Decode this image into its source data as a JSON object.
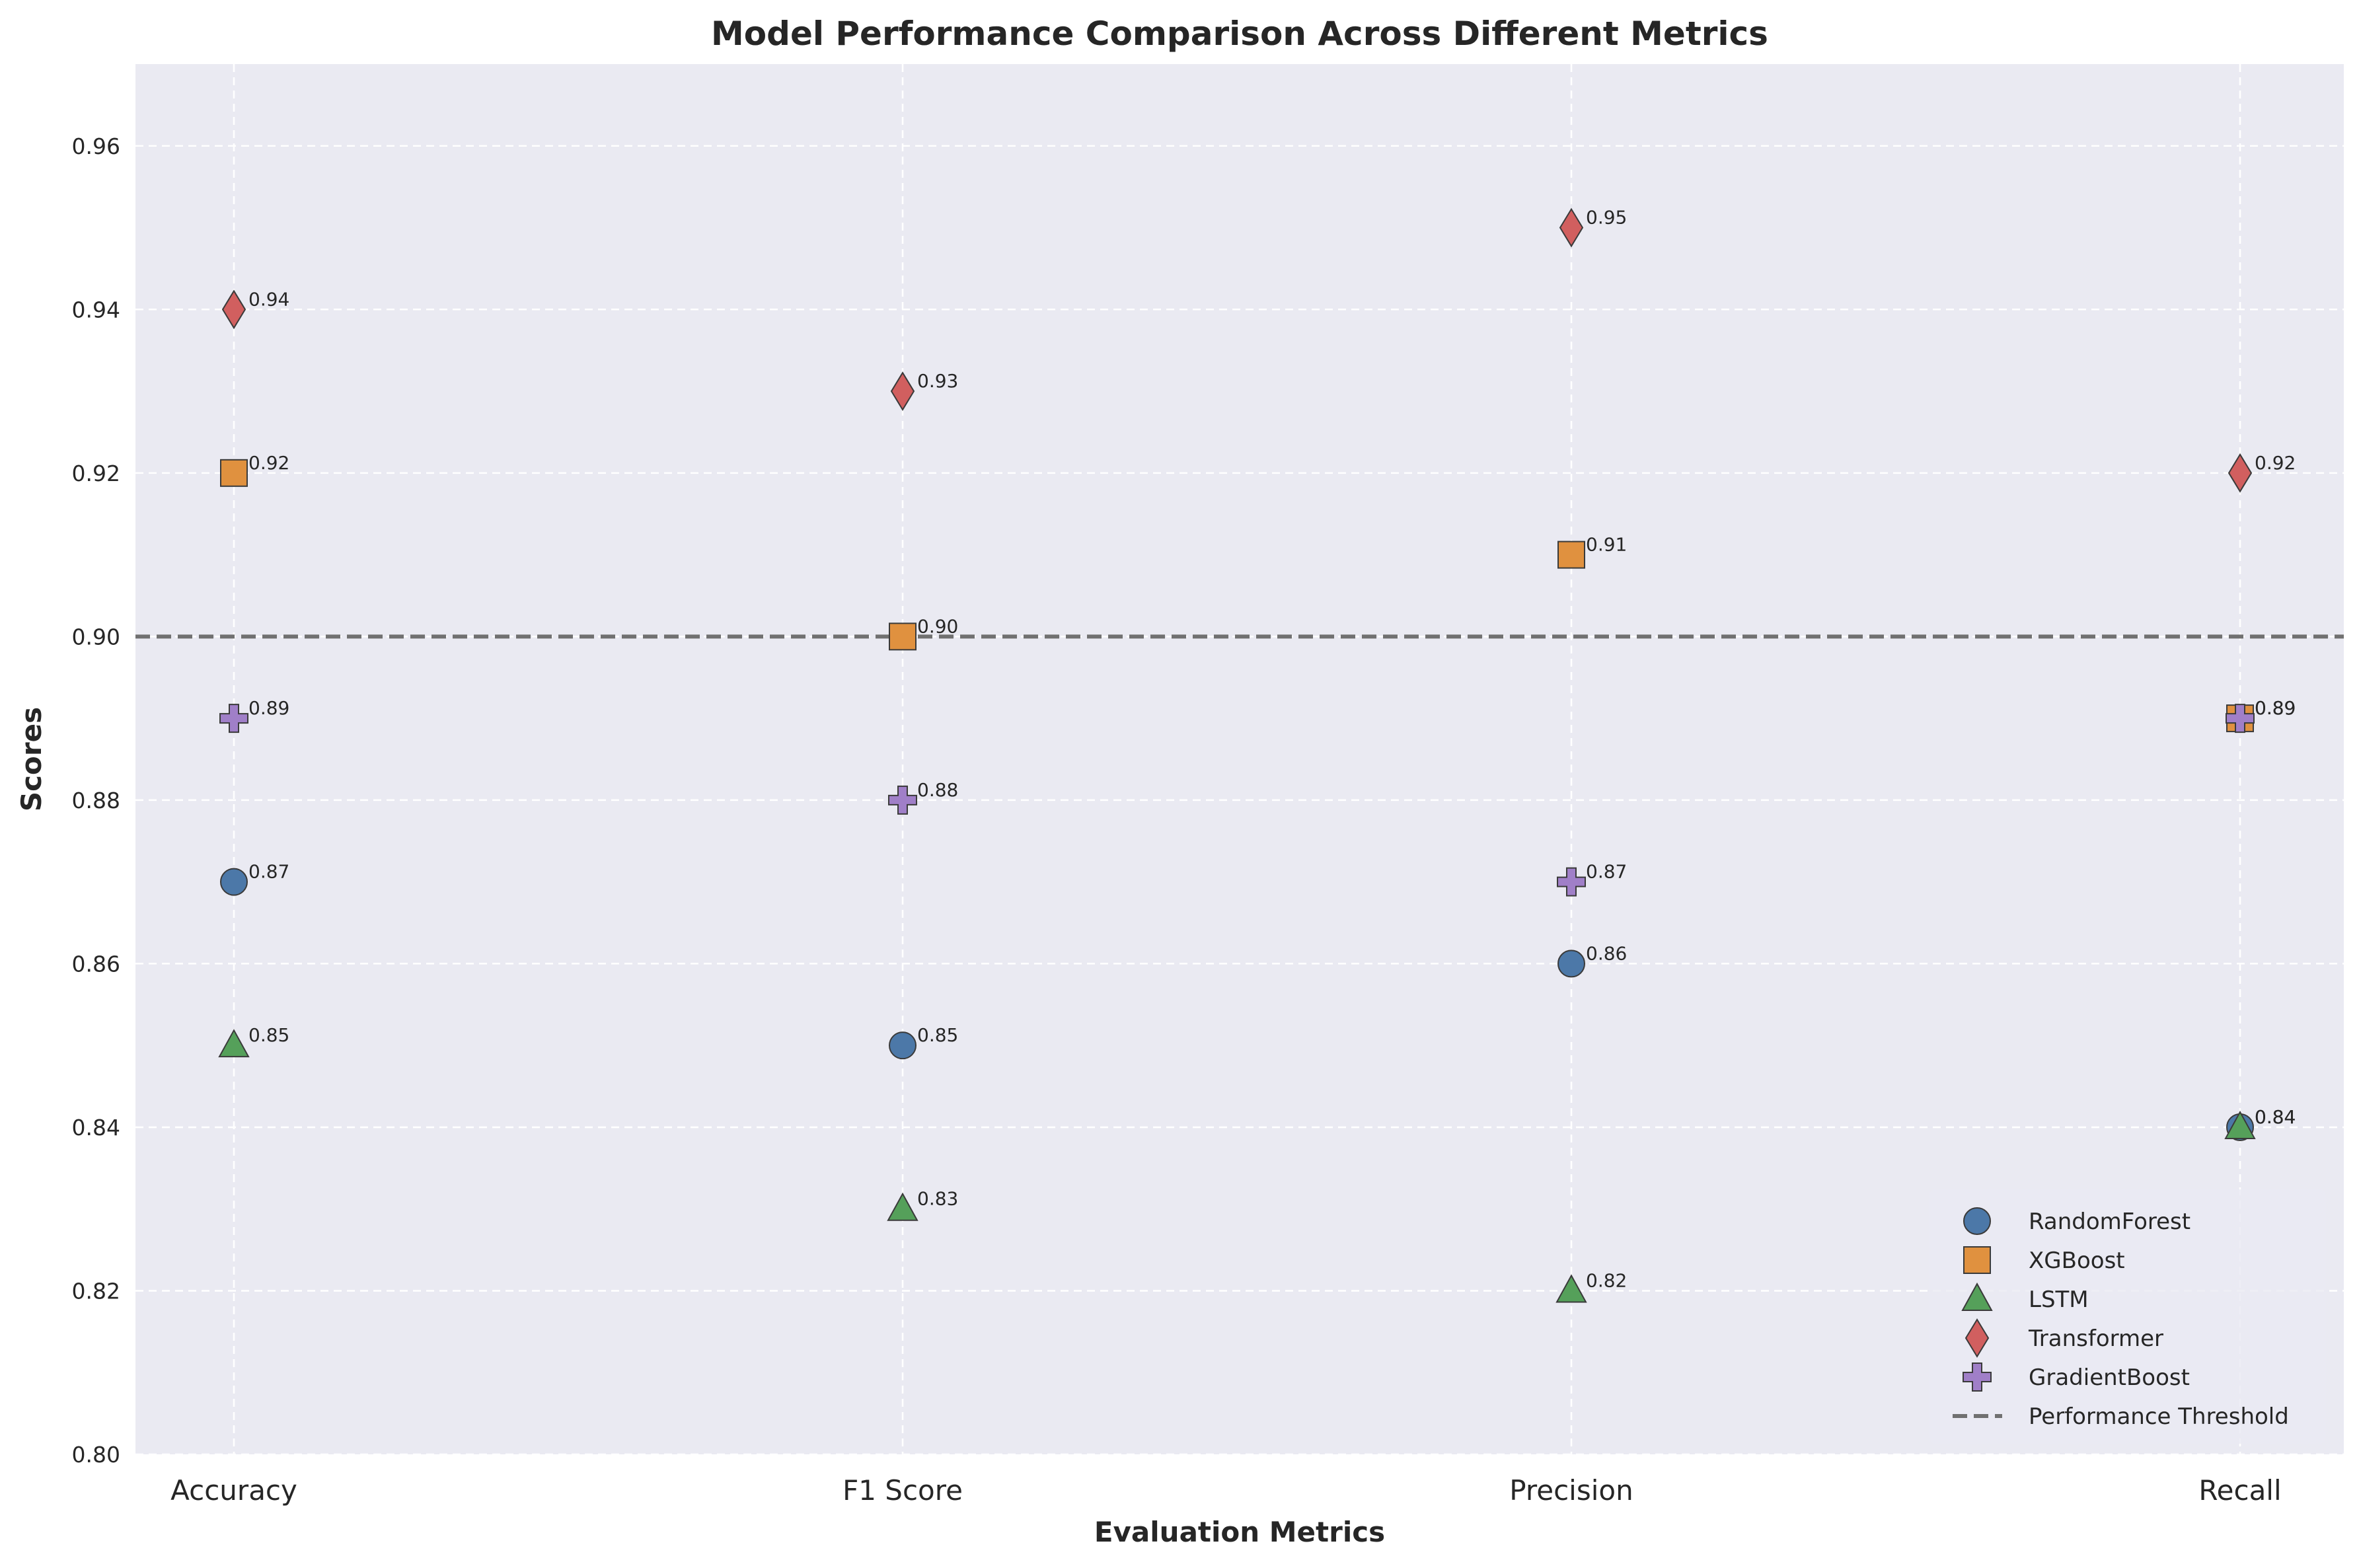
{
  "chart_data": {
    "type": "scatter",
    "title": "Model Performance Comparison Across Different Metrics",
    "xlabel": "Evaluation Metrics",
    "ylabel": "Scores",
    "categories": [
      "Accuracy",
      "F1 Score",
      "Precision",
      "Recall"
    ],
    "ylim": [
      0.8,
      0.97
    ],
    "yticks": [
      "0.80",
      "0.82",
      "0.84",
      "0.86",
      "0.88",
      "0.90",
      "0.92",
      "0.94",
      "0.96"
    ],
    "grid": true,
    "legend_position": "lower-right",
    "series": [
      {
        "name": "RandomForest",
        "marker": "circle",
        "color": "#4c78a8",
        "values": [
          0.87,
          0.85,
          0.86,
          0.84
        ],
        "labels": [
          "0.87",
          "0.85",
          "0.86",
          "0.84"
        ]
      },
      {
        "name": "XGBoost",
        "marker": "square",
        "color": "#e0913f",
        "values": [
          0.92,
          0.9,
          0.91,
          0.89
        ],
        "labels": [
          "0.92",
          "0.90",
          "0.91",
          "0.89"
        ]
      },
      {
        "name": "LSTM",
        "marker": "triangle",
        "color": "#55a05a",
        "values": [
          0.85,
          0.83,
          0.82,
          0.84
        ],
        "labels": [
          "0.85",
          "0.83",
          "0.82",
          "0.84"
        ]
      },
      {
        "name": "Transformer",
        "marker": "diamond",
        "color": "#d15f5f",
        "values": [
          0.94,
          0.93,
          0.95,
          0.92
        ],
        "labels": [
          "0.94",
          "0.93",
          "0.95",
          "0.92"
        ]
      },
      {
        "name": "GradientBoost",
        "marker": "plus",
        "color": "#a07fc8",
        "values": [
          0.89,
          0.88,
          0.87,
          0.89
        ],
        "labels": [
          "0.89",
          "0.88",
          "0.87",
          "0.89"
        ]
      }
    ],
    "threshold": {
      "name": "Performance Threshold",
      "value": 0.9,
      "color": "#707070"
    },
    "colors": {
      "plot_background": "#eaeaf2",
      "grid": "#ffffff",
      "marker_edge": "#3a3a3a"
    }
  }
}
